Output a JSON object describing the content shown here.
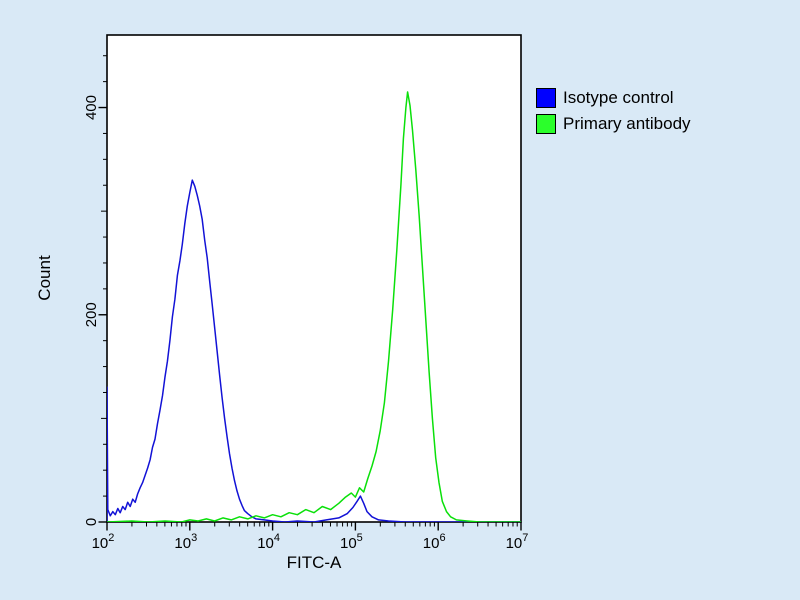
{
  "chart_data": {
    "type": "line",
    "title": "",
    "xlabel": "FITC-A",
    "ylabel": "Count",
    "x_scale": "log",
    "x_log_range": [
      2,
      7
    ],
    "x_tick_exponents": [
      2,
      3,
      4,
      5,
      6,
      7
    ],
    "y_range": [
      0,
      470
    ],
    "y_ticks": [
      0,
      200,
      400
    ],
    "y_minor_step": 25,
    "grid": false,
    "legend_position": "top-right",
    "colors": {
      "background": "#d9e9f6",
      "plot_background": "#ffffff",
      "axis": "#000000",
      "text": "#000000"
    },
    "series": [
      {
        "name": "Isotype control",
        "color": "#1212d6",
        "swatch": "#0000ff",
        "peak_x": 1200,
        "peak_count": 330,
        "points": [
          [
            2.0,
            0
          ],
          [
            2.0,
            130
          ],
          [
            2.01,
            12
          ],
          [
            2.04,
            6
          ],
          [
            2.07,
            10
          ],
          [
            2.1,
            7
          ],
          [
            2.13,
            13
          ],
          [
            2.16,
            9
          ],
          [
            2.19,
            15
          ],
          [
            2.22,
            12
          ],
          [
            2.25,
            19
          ],
          [
            2.28,
            15
          ],
          [
            2.31,
            22
          ],
          [
            2.34,
            19
          ],
          [
            2.37,
            27
          ],
          [
            2.4,
            33
          ],
          [
            2.43,
            38
          ],
          [
            2.46,
            45
          ],
          [
            2.49,
            52
          ],
          [
            2.52,
            60
          ],
          [
            2.55,
            72
          ],
          [
            2.58,
            80
          ],
          [
            2.61,
            95
          ],
          [
            2.64,
            108
          ],
          [
            2.67,
            122
          ],
          [
            2.7,
            140
          ],
          [
            2.73,
            155
          ],
          [
            2.76,
            175
          ],
          [
            2.79,
            198
          ],
          [
            2.82,
            215
          ],
          [
            2.85,
            238
          ],
          [
            2.88,
            252
          ],
          [
            2.91,
            268
          ],
          [
            2.94,
            288
          ],
          [
            2.97,
            305
          ],
          [
            3.0,
            318
          ],
          [
            3.03,
            330
          ],
          [
            3.06,
            324
          ],
          [
            3.09,
            315
          ],
          [
            3.12,
            305
          ],
          [
            3.15,
            292
          ],
          [
            3.18,
            272
          ],
          [
            3.21,
            255
          ],
          [
            3.24,
            232
          ],
          [
            3.27,
            210
          ],
          [
            3.3,
            188
          ],
          [
            3.33,
            165
          ],
          [
            3.36,
            142
          ],
          [
            3.39,
            120
          ],
          [
            3.42,
            100
          ],
          [
            3.45,
            82
          ],
          [
            3.48,
            66
          ],
          [
            3.51,
            52
          ],
          [
            3.54,
            40
          ],
          [
            3.57,
            30
          ],
          [
            3.6,
            22
          ],
          [
            3.63,
            16
          ],
          [
            3.66,
            11
          ],
          [
            3.7,
            8
          ],
          [
            3.75,
            5
          ],
          [
            3.8,
            3
          ],
          [
            3.9,
            2
          ],
          [
            4.0,
            1
          ],
          [
            4.15,
            0
          ],
          [
            4.3,
            1
          ],
          [
            4.5,
            0
          ],
          [
            4.65,
            2
          ],
          [
            4.8,
            4
          ],
          [
            4.9,
            8
          ],
          [
            4.97,
            14
          ],
          [
            5.02,
            20
          ],
          [
            5.06,
            25
          ],
          [
            5.1,
            18
          ],
          [
            5.14,
            10
          ],
          [
            5.2,
            5
          ],
          [
            5.28,
            2
          ],
          [
            5.4,
            1
          ],
          [
            5.6,
            0
          ],
          [
            6.0,
            0
          ],
          [
            6.5,
            0
          ],
          [
            7.0,
            0
          ]
        ]
      },
      {
        "name": "Primary antibody",
        "color": "#0ae00a",
        "swatch": "#2bff2b",
        "peak_x": 400000,
        "peak_count": 415,
        "points": [
          [
            2.0,
            0
          ],
          [
            2.3,
            1
          ],
          [
            2.5,
            0
          ],
          [
            2.7,
            1
          ],
          [
            2.9,
            0
          ],
          [
            3.0,
            2
          ],
          [
            3.1,
            1
          ],
          [
            3.2,
            3
          ],
          [
            3.3,
            1
          ],
          [
            3.4,
            4
          ],
          [
            3.5,
            2
          ],
          [
            3.6,
            5
          ],
          [
            3.7,
            3
          ],
          [
            3.8,
            6
          ],
          [
            3.9,
            4
          ],
          [
            4.0,
            7
          ],
          [
            4.1,
            5
          ],
          [
            4.2,
            9
          ],
          [
            4.3,
            7
          ],
          [
            4.4,
            12
          ],
          [
            4.5,
            9
          ],
          [
            4.6,
            15
          ],
          [
            4.7,
            12
          ],
          [
            4.8,
            18
          ],
          [
            4.88,
            24
          ],
          [
            4.95,
            28
          ],
          [
            5.0,
            24
          ],
          [
            5.05,
            33
          ],
          [
            5.1,
            29
          ],
          [
            5.15,
            42
          ],
          [
            5.2,
            54
          ],
          [
            5.25,
            68
          ],
          [
            5.3,
            88
          ],
          [
            5.35,
            115
          ],
          [
            5.4,
            155
          ],
          [
            5.45,
            205
          ],
          [
            5.5,
            262
          ],
          [
            5.55,
            325
          ],
          [
            5.58,
            370
          ],
          [
            5.61,
            400
          ],
          [
            5.63,
            415
          ],
          [
            5.66,
            402
          ],
          [
            5.69,
            378
          ],
          [
            5.73,
            340
          ],
          [
            5.77,
            295
          ],
          [
            5.81,
            245
          ],
          [
            5.85,
            195
          ],
          [
            5.89,
            145
          ],
          [
            5.93,
            100
          ],
          [
            5.97,
            62
          ],
          [
            6.01,
            38
          ],
          [
            6.05,
            20
          ],
          [
            6.1,
            10
          ],
          [
            6.15,
            5
          ],
          [
            6.22,
            2
          ],
          [
            6.35,
            1
          ],
          [
            6.5,
            0
          ],
          [
            7.0,
            0
          ]
        ]
      }
    ]
  }
}
